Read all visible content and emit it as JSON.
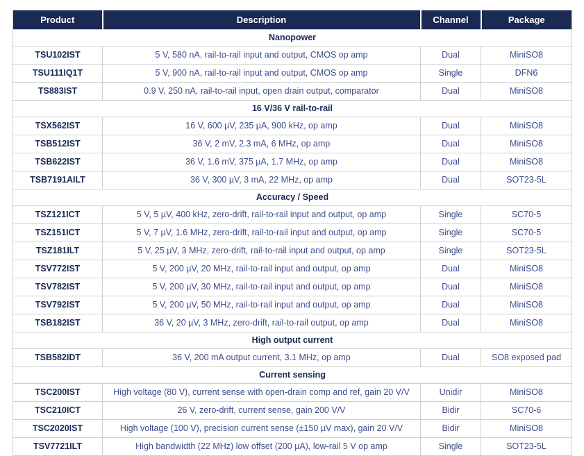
{
  "colors": {
    "header_bg": "#1a2a55",
    "header_text": "#ffffff",
    "body_text": "#3e4c8c",
    "section_text": "#1a2a55",
    "grid_border": "#cfcfd1"
  },
  "table": {
    "columns": [
      "Product",
      "Description",
      "Channel",
      "Package"
    ],
    "sections": [
      {
        "title": "Nanopower",
        "rows": [
          {
            "product": "TSU102IST",
            "description": "5 V, 580 nA, rail-to-rail input and output, CMOS op amp",
            "channel": "Dual",
            "package": "MiniSO8"
          },
          {
            "product": "TSU111IQ1T",
            "description": "5 V, 900 nA, rail-to-rail input and output, CMOS op amp",
            "channel": "Single",
            "package": "DFN6"
          },
          {
            "product": "TS883IST",
            "description": "0.9 V, 250 nA, rail-to-rail input, open drain output, comparator",
            "channel": "Dual",
            "package": "MiniSO8"
          }
        ]
      },
      {
        "title": "16 V/36 V rail-to-rail",
        "rows": [
          {
            "product": "TSX562IST",
            "description": "16 V, 600 µV, 235 µA, 900 kHz, op amp",
            "channel": "Dual",
            "package": "MiniSO8"
          },
          {
            "product": "TSB512IST",
            "description": "36 V, 2 mV, 2.3 mA, 6 MHz, op amp",
            "channel": "Dual",
            "package": "MiniSO8"
          },
          {
            "product": "TSB622IST",
            "description": "36 V, 1.6 mV, 375 µA, 1.7 MHz, op amp",
            "channel": "Dual",
            "package": "MiniSO8"
          },
          {
            "product": "TSB7191AILT",
            "description": "36 V, 300 µV, 3 mA, 22 MHz, op amp",
            "channel": "Dual",
            "package": "SOT23-5L"
          }
        ]
      },
      {
        "title": "Accuracy / Speed",
        "rows": [
          {
            "product": "TSZ121ICT",
            "description": "5 V, 5 µV, 400 kHz, zero-drift, rail-to-rail input and output, op amp",
            "channel": "Single",
            "package": "SC70-5"
          },
          {
            "product": "TSZ151ICT",
            "description": "5 V, 7 µV, 1.6 MHz, zero-drift, rail-to-rail input and output, op amp",
            "channel": "Single",
            "package": "SC70-5"
          },
          {
            "product": "TSZ181ILT",
            "description": "5 V, 25 µV, 3 MHz, zero-drift, rail-to-rail input and output, op amp",
            "channel": "Single",
            "package": "SOT23-5L"
          },
          {
            "product": "TSV772IST",
            "description": "5 V, 200 µV, 20 MHz, rail-to-rail input and output, op amp",
            "channel": "Dual",
            "package": "MiniSO8"
          },
          {
            "product": "TSV782IST",
            "description": "5 V, 200 µV, 30 MHz, rail-to-rail input and output, op amp",
            "channel": "Dual",
            "package": "MiniSO8"
          },
          {
            "product": "TSV792IST",
            "description": "5 V, 200 µV, 50 MHz, rail-to-rail input and output, op amp",
            "channel": "Dual",
            "package": "MiniSO8"
          },
          {
            "product": "TSB182IST",
            "description": "36 V, 20 µV, 3 MHz, zero-drift, rail-to-rail output, op amp",
            "channel": "Dual",
            "package": "MiniSO8"
          }
        ]
      },
      {
        "title": "High output current",
        "rows": [
          {
            "product": "TSB582IDT",
            "description": "36 V, 200 mA output current, 3.1 MHz, op amp",
            "channel": "Dual",
            "package": "SO8 exposed pad"
          }
        ]
      },
      {
        "title": "Current sensing",
        "rows": [
          {
            "product": "TSC200IST",
            "description": "High voltage (80 V), current sense with open-drain comp and ref, gain 20 V/V",
            "channel": "Unidir",
            "package": "MiniSO8"
          },
          {
            "product": "TSC210ICT",
            "description": "26 V, zero-drift, current sense, gain 200 V/V",
            "channel": "Bidir",
            "package": "SC70-6"
          },
          {
            "product": "TSC2020IST",
            "description": "High voltage (100 V), precision current sense (±150 µV max), gain 20 V/V",
            "channel": "Bidir",
            "package": "MiniSO8"
          },
          {
            "product": "TSV7721ILT",
            "description": "High bandwidth (22 MHz) low offset (200 µA), low-rail 5 V op amp",
            "channel": "Single",
            "package": "SOT23-5L"
          }
        ]
      }
    ]
  }
}
